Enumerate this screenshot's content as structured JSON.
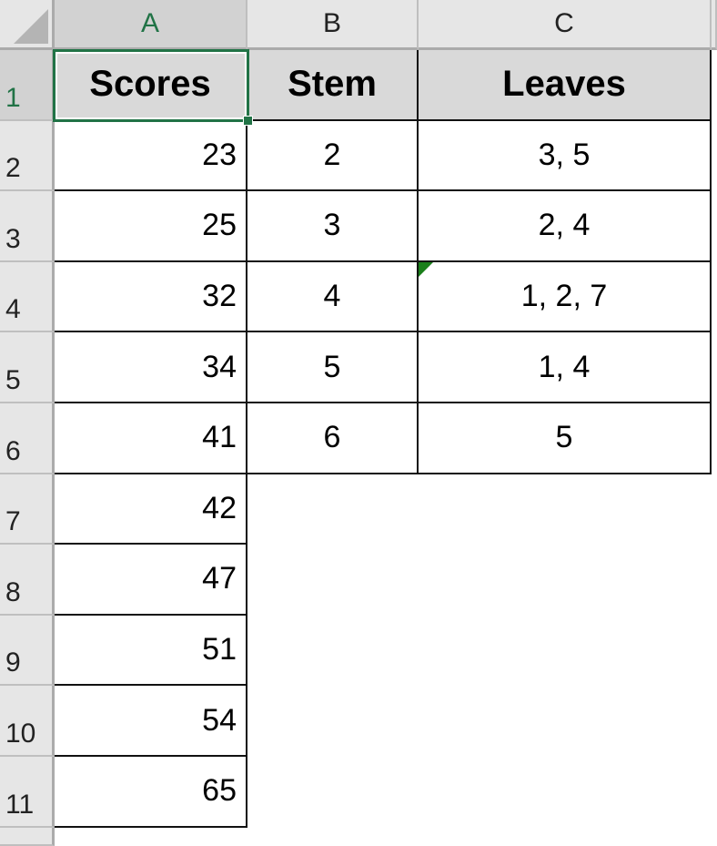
{
  "columns": [
    "A",
    "B",
    "C"
  ],
  "rows": [
    "1",
    "2",
    "3",
    "4",
    "5",
    "6",
    "7",
    "8",
    "9",
    "10",
    "11"
  ],
  "selected_cell": "A1",
  "accent_color": "#217346",
  "cells": [
    [
      "Scores",
      "Stem",
      "Leaves"
    ],
    [
      "23",
      "2",
      "3, 5"
    ],
    [
      "25",
      "3",
      "2, 4"
    ],
    [
      "32",
      "4",
      "1, 2, 7"
    ],
    [
      "34",
      "5",
      "1, 4"
    ],
    [
      "41",
      "6",
      "5"
    ],
    [
      "42",
      "",
      ""
    ],
    [
      "47",
      "",
      ""
    ],
    [
      "51",
      "",
      ""
    ],
    [
      "54",
      "",
      ""
    ],
    [
      "65",
      "",
      ""
    ]
  ],
  "error_indicator_cell": "C4"
}
